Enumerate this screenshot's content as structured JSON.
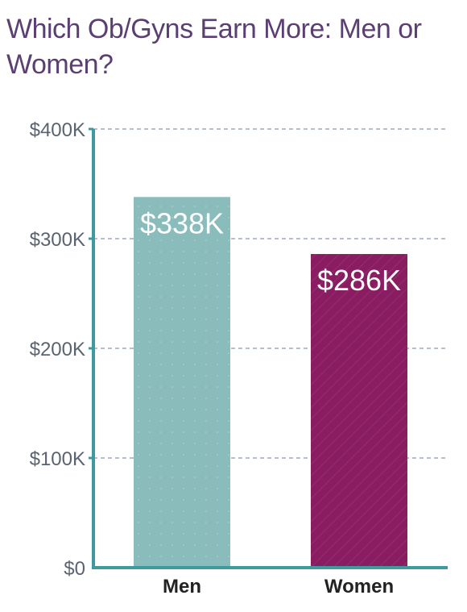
{
  "chart_data": {
    "type": "bar",
    "title": "Which Ob/Gyns Earn More: Men or Women?",
    "categories": [
      "Men",
      "Women"
    ],
    "values": [
      338,
      286
    ],
    "value_labels": [
      "$338K",
      "$286K"
    ],
    "colors": [
      "#8bbcbc",
      "#8a1c62"
    ],
    "ylim": [
      0,
      400
    ],
    "yticks": [
      0,
      100,
      200,
      300,
      400
    ],
    "ytick_labels": [
      "$0",
      "$100K",
      "$200K",
      "$300K",
      "$400K"
    ],
    "xlabel": "",
    "ylabel": "",
    "grid": "horizontal dashed",
    "axis_color": "#3f9aa0"
  }
}
